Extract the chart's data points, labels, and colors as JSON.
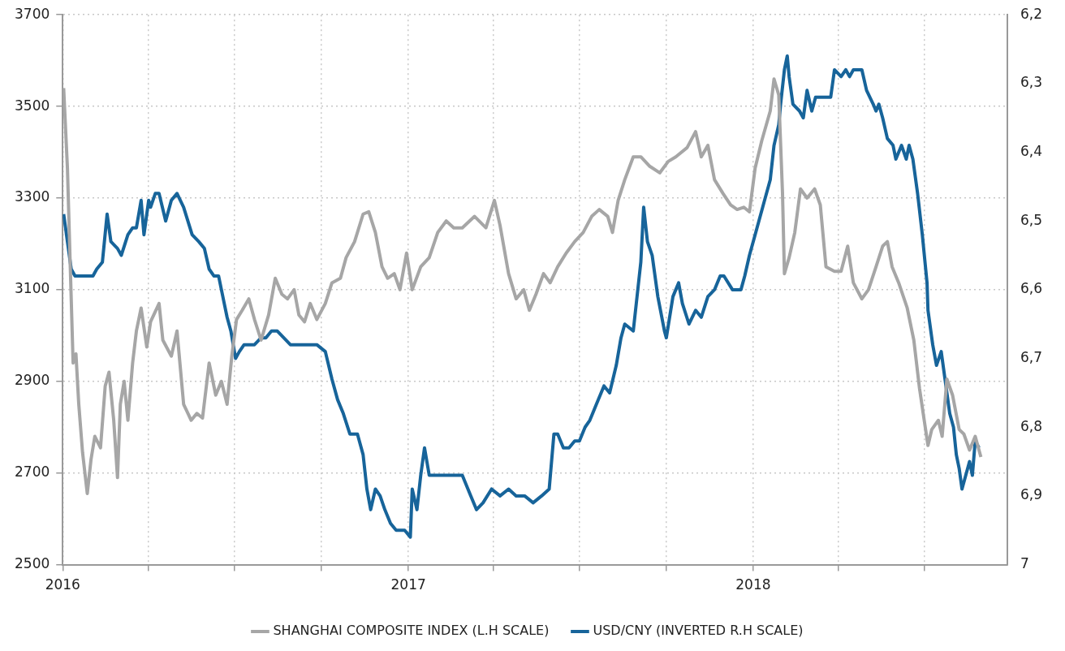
{
  "chart_data": {
    "type": "line",
    "xlim": [
      "2016-01-01",
      "2018-09-27"
    ],
    "xticks": [
      {
        "value": "2016-01-01",
        "label": "2016"
      },
      {
        "value": "2016-04-01",
        "label": null
      },
      {
        "value": "2016-07-01",
        "label": null
      },
      {
        "value": "2016-10-01",
        "label": null
      },
      {
        "value": "2017-01-01",
        "label": "2017"
      },
      {
        "value": "2017-04-01",
        "label": null
      },
      {
        "value": "2017-07-01",
        "label": null
      },
      {
        "value": "2017-10-01",
        "label": null
      },
      {
        "value": "2018-01-01",
        "label": "2018"
      },
      {
        "value": "2018-04-01",
        "label": null
      },
      {
        "value": "2018-07-01",
        "label": null
      }
    ],
    "ylim": [
      2500,
      3700
    ],
    "yticks": [
      2500,
      2700,
      2900,
      3100,
      3300,
      3500,
      3700
    ],
    "y2lim": [
      7,
      6.2
    ],
    "y2ticks": [
      {
        "value": 6.2,
        "label": "6,2"
      },
      {
        "value": 6.3,
        "label": "6,3"
      },
      {
        "value": 6.4,
        "label": "6,4"
      },
      {
        "value": 6.5,
        "label": "6,5"
      },
      {
        "value": 6.6,
        "label": "6,6"
      },
      {
        "value": 6.7,
        "label": "6,7"
      },
      {
        "value": 6.8,
        "label": "6,8"
      },
      {
        "value": 6.9,
        "label": "6,9"
      },
      7
    ],
    "grid": true,
    "legend": "bottom",
    "series": [
      {
        "name": "SHANGHAI COMPOSITE INDEX (L.H SCALE)",
        "color": "#a6a6a6",
        "x": [
          "2016-01-02",
          "2016-01-06",
          "2016-01-09",
          "2016-01-12",
          "2016-01-15",
          "2016-01-18",
          "2016-01-22",
          "2016-01-27",
          "2016-01-31",
          "2016-02-04",
          "2016-02-10",
          "2016-02-15",
          "2016-02-19",
          "2016-02-24",
          "2016-02-28",
          "2016-03-02",
          "2016-03-06",
          "2016-03-10",
          "2016-03-15",
          "2016-03-19",
          "2016-03-24",
          "2016-03-30",
          "2016-04-03",
          "2016-04-12",
          "2016-04-16",
          "2016-04-25",
          "2016-05-01",
          "2016-05-08",
          "2016-05-16",
          "2016-05-22",
          "2016-05-28",
          "2016-06-04",
          "2016-06-11",
          "2016-06-17",
          "2016-06-23",
          "2016-06-28",
          "2016-07-03",
          "2016-07-09",
          "2016-07-16",
          "2016-07-22",
          "2016-07-29",
          "2016-08-06",
          "2016-08-13",
          "2016-08-20",
          "2016-08-26",
          "2016-09-02",
          "2016-09-07",
          "2016-09-13",
          "2016-09-19",
          "2016-09-26",
          "2016-10-05",
          "2016-10-12",
          "2016-10-21",
          "2016-10-27",
          "2016-11-05",
          "2016-11-14",
          "2016-11-20",
          "2016-11-27",
          "2016-12-04",
          "2016-12-10",
          "2016-12-17",
          "2016-12-23",
          "2016-12-30",
          "2017-01-05",
          "2017-01-14",
          "2017-01-23",
          "2017-02-01",
          "2017-02-10",
          "2017-02-18",
          "2017-02-27",
          "2017-03-12",
          "2017-03-24",
          "2017-04-02",
          "2017-04-08",
          "2017-04-17",
          "2017-04-25",
          "2017-05-03",
          "2017-05-09",
          "2017-05-16",
          "2017-05-24",
          "2017-05-31",
          "2017-06-08",
          "2017-06-17",
          "2017-06-26",
          "2017-07-05",
          "2017-07-14",
          "2017-07-22",
          "2017-07-31",
          "2017-08-05",
          "2017-08-11",
          "2017-08-18",
          "2017-08-27",
          "2017-09-04",
          "2017-09-13",
          "2017-09-24",
          "2017-10-03",
          "2017-10-11",
          "2017-10-23",
          "2017-11-01",
          "2017-11-07",
          "2017-11-14",
          "2017-11-21",
          "2017-11-30",
          "2017-12-08",
          "2017-12-15",
          "2017-12-22",
          "2017-12-28",
          "2018-01-03",
          "2018-01-10",
          "2018-01-19",
          "2018-01-23",
          "2018-01-28",
          "2018-02-01",
          "2018-02-03",
          "2018-02-08",
          "2018-02-14",
          "2018-02-20",
          "2018-02-27",
          "2018-03-07",
          "2018-03-13",
          "2018-03-19",
          "2018-03-28",
          "2018-04-04",
          "2018-04-11",
          "2018-04-17",
          "2018-04-26",
          "2018-05-03",
          "2018-05-11",
          "2018-05-18",
          "2018-05-23",
          "2018-05-28",
          "2018-06-04",
          "2018-06-13",
          "2018-06-20",
          "2018-06-26",
          "2018-07-01",
          "2018-07-05",
          "2018-07-09",
          "2018-07-16",
          "2018-07-20",
          "2018-07-25",
          "2018-07-31",
          "2018-08-07",
          "2018-08-12",
          "2018-08-18",
          "2018-08-24",
          "2018-08-30"
        ],
        "values": [
          3540,
          3365,
          3150,
          2940,
          2960,
          2850,
          2745,
          2655,
          2730,
          2780,
          2755,
          2890,
          2920,
          2815,
          2690,
          2850,
          2900,
          2815,
          2940,
          3010,
          3060,
          2975,
          3030,
          3070,
          2990,
          2955,
          3010,
          2850,
          2815,
          2830,
          2820,
          2940,
          2870,
          2900,
          2850,
          2955,
          3035,
          3055,
          3080,
          3035,
          2990,
          3045,
          3125,
          3090,
          3080,
          3100,
          3045,
          3030,
          3070,
          3035,
          3070,
          3115,
          3125,
          3170,
          3205,
          3265,
          3270,
          3225,
          3150,
          3125,
          3135,
          3100,
          3180,
          3100,
          3150,
          3170,
          3225,
          3250,
          3235,
          3235,
          3260,
          3235,
          3295,
          3240,
          3135,
          3080,
          3100,
          3055,
          3090,
          3135,
          3115,
          3150,
          3180,
          3205,
          3225,
          3260,
          3275,
          3260,
          3225,
          3295,
          3340,
          3390,
          3390,
          3370,
          3355,
          3380,
          3390,
          3410,
          3445,
          3390,
          3415,
          3340,
          3310,
          3285,
          3275,
          3280,
          3270,
          3365,
          3425,
          3490,
          3560,
          3525,
          3310,
          3135,
          3170,
          3225,
          3320,
          3300,
          3320,
          3285,
          3150,
          3140,
          3140,
          3195,
          3115,
          3080,
          3100,
          3150,
          3195,
          3205,
          3150,
          3115,
          3060,
          2990,
          2885,
          2815,
          2760,
          2795,
          2815,
          2780,
          2905,
          2870,
          2795,
          2785,
          2750,
          2780,
          2735
        ]
      },
      {
        "name": "USD/CNY (INVERTED R.H SCALE)",
        "color": "#17649a",
        "axis": "y2",
        "x": [
          "2016-01-02",
          "2016-01-06",
          "2016-01-10",
          "2016-01-14",
          "2016-01-17",
          "2016-01-22",
          "2016-02-02",
          "2016-02-06",
          "2016-02-12",
          "2016-02-17",
          "2016-02-21",
          "2016-02-28",
          "2016-03-03",
          "2016-03-10",
          "2016-03-15",
          "2016-03-19",
          "2016-03-24",
          "2016-03-27",
          "2016-04-01",
          "2016-04-03",
          "2016-04-08",
          "2016-04-12",
          "2016-04-19",
          "2016-04-25",
          "2016-05-01",
          "2016-05-08",
          "2016-05-17",
          "2016-05-24",
          "2016-05-30",
          "2016-06-04",
          "2016-06-09",
          "2016-06-14",
          "2016-06-20",
          "2016-06-23",
          "2016-06-27",
          "2016-07-02",
          "2016-07-06",
          "2016-07-11",
          "2016-07-16",
          "2016-07-22",
          "2016-07-29",
          "2016-08-03",
          "2016-08-09",
          "2016-08-15",
          "2016-08-22",
          "2016-08-29",
          "2016-09-04",
          "2016-09-09",
          "2016-09-17",
          "2016-09-26",
          "2016-10-05",
          "2016-10-12",
          "2016-10-18",
          "2016-10-24",
          "2016-10-31",
          "2016-11-08",
          "2016-11-14",
          "2016-11-18",
          "2016-11-22",
          "2016-11-27",
          "2016-12-02",
          "2016-12-07",
          "2016-12-13",
          "2016-12-19",
          "2016-12-28",
          "2017-01-03",
          "2017-01-05",
          "2017-01-10",
          "2017-01-14",
          "2017-01-18",
          "2017-01-23",
          "2017-02-01",
          "2017-02-10",
          "2017-02-18",
          "2017-02-27",
          "2017-03-08",
          "2017-03-14",
          "2017-03-21",
          "2017-03-30",
          "2017-04-08",
          "2017-04-17",
          "2017-04-25",
          "2017-05-04",
          "2017-05-13",
          "2017-05-22",
          "2017-05-30",
          "2017-06-04",
          "2017-06-08",
          "2017-06-14",
          "2017-06-20",
          "2017-06-26",
          "2017-07-01",
          "2017-07-07",
          "2017-07-12",
          "2017-07-18",
          "2017-07-27",
          "2017-08-02",
          "2017-08-09",
          "2017-08-14",
          "2017-08-18",
          "2017-08-27",
          "2017-08-31",
          "2017-09-04",
          "2017-09-07",
          "2017-09-11",
          "2017-09-16",
          "2017-09-22",
          "2017-09-29",
          "2017-10-01",
          "2017-10-08",
          "2017-10-14",
          "2017-10-18",
          "2017-10-25",
          "2017-11-01",
          "2017-11-07",
          "2017-11-14",
          "2017-11-21",
          "2017-11-27",
          "2017-12-01",
          "2017-12-10",
          "2017-12-19",
          "2017-12-23",
          "2017-12-28",
          "2018-01-03",
          "2018-01-07",
          "2018-01-13",
          "2018-01-19",
          "2018-01-23",
          "2018-01-28",
          "2018-01-30",
          "2018-02-03",
          "2018-02-06",
          "2018-02-08",
          "2018-02-12",
          "2018-02-19",
          "2018-02-23",
          "2018-02-27",
          "2018-03-04",
          "2018-03-08",
          "2018-03-17",
          "2018-03-24",
          "2018-03-28",
          "2018-04-04",
          "2018-04-09",
          "2018-04-13",
          "2018-04-17",
          "2018-04-26",
          "2018-05-01",
          "2018-05-08",
          "2018-05-11",
          "2018-05-14",
          "2018-05-18",
          "2018-05-23",
          "2018-05-29",
          "2018-06-01",
          "2018-06-07",
          "2018-06-12",
          "2018-06-15",
          "2018-06-19",
          "2018-06-24",
          "2018-06-29",
          "2018-07-04",
          "2018-07-05",
          "2018-07-10",
          "2018-07-14",
          "2018-07-19",
          "2018-07-23",
          "2018-07-28",
          "2018-08-01",
          "2018-08-04",
          "2018-08-07",
          "2018-08-10",
          "2018-08-14",
          "2018-08-18",
          "2018-08-21",
          "2018-08-24",
          "2018-08-28"
        ],
        "values": [
          6.49,
          6.53,
          6.57,
          6.58,
          6.58,
          6.58,
          6.58,
          6.57,
          6.56,
          6.49,
          6.53,
          6.54,
          6.55,
          6.52,
          6.51,
          6.51,
          6.47,
          6.52,
          6.47,
          6.48,
          6.46,
          6.46,
          6.5,
          6.47,
          6.46,
          6.48,
          6.52,
          6.53,
          6.54,
          6.57,
          6.58,
          6.58,
          6.62,
          6.64,
          6.66,
          6.7,
          6.69,
          6.68,
          6.68,
          6.68,
          6.67,
          6.67,
          6.66,
          6.66,
          6.67,
          6.68,
          6.68,
          6.68,
          6.68,
          6.68,
          6.69,
          6.73,
          6.76,
          6.78,
          6.81,
          6.81,
          6.84,
          6.89,
          6.92,
          6.89,
          6.9,
          6.92,
          6.94,
          6.95,
          6.95,
          6.96,
          6.89,
          6.92,
          6.87,
          6.83,
          6.87,
          6.87,
          6.87,
          6.87,
          6.87,
          6.9,
          6.92,
          6.91,
          6.89,
          6.9,
          6.89,
          6.9,
          6.9,
          6.91,
          6.9,
          6.89,
          6.81,
          6.81,
          6.83,
          6.83,
          6.82,
          6.82,
          6.8,
          6.79,
          6.77,
          6.74,
          6.75,
          6.71,
          6.67,
          6.65,
          6.66,
          6.61,
          6.56,
          6.48,
          6.53,
          6.55,
          6.61,
          6.66,
          6.67,
          6.61,
          6.59,
          6.62,
          6.65,
          6.63,
          6.64,
          6.61,
          6.6,
          6.58,
          6.58,
          6.6,
          6.6,
          6.58,
          6.55,
          6.52,
          6.5,
          6.47,
          6.44,
          6.39,
          6.36,
          6.33,
          6.28,
          6.26,
          6.29,
          6.33,
          6.34,
          6.35,
          6.31,
          6.34,
          6.32,
          6.32,
          6.32,
          6.28,
          6.29,
          6.28,
          6.29,
          6.28,
          6.28,
          6.31,
          6.33,
          6.34,
          6.33,
          6.35,
          6.38,
          6.39,
          6.41,
          6.39,
          6.41,
          6.39,
          6.41,
          6.46,
          6.52,
          6.59,
          6.63,
          6.68,
          6.71,
          6.69,
          6.73,
          6.78,
          6.8,
          6.84,
          6.86,
          6.89,
          6.87,
          6.85,
          6.87,
          6.82,
          6.83
        ]
      }
    ]
  }
}
